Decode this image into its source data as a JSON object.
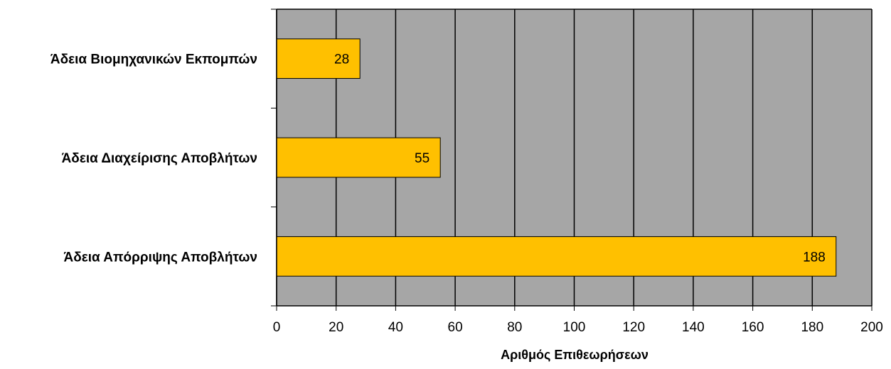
{
  "chart_data": {
    "type": "bar",
    "orientation": "horizontal",
    "categories": [
      "Άδεια Βιομηχανικών Εκπομπών",
      "Άδεια Διαχείρισης Αποβλήτων",
      "Άδεια Απόρριψης Αποβλήτων"
    ],
    "values": [
      28,
      55,
      188
    ],
    "data_labels": [
      "28",
      "55",
      "188"
    ],
    "title": "",
    "xlabel": "Αριθμός Επιθεωρήσεων",
    "ylabel": "",
    "xlim": [
      0,
      200
    ],
    "x_ticks": [
      0,
      20,
      40,
      60,
      80,
      100,
      120,
      140,
      160,
      180,
      200
    ],
    "x_tick_labels": [
      "0",
      "20",
      "40",
      "60",
      "80",
      "100",
      "120",
      "140",
      "160",
      "180",
      "200"
    ],
    "grid": "vertical",
    "legend": "none",
    "colors": {
      "bar": "#FFC000",
      "plot_background": "#A6A6A6",
      "gridline": "#000000",
      "axis": "#000000"
    }
  }
}
